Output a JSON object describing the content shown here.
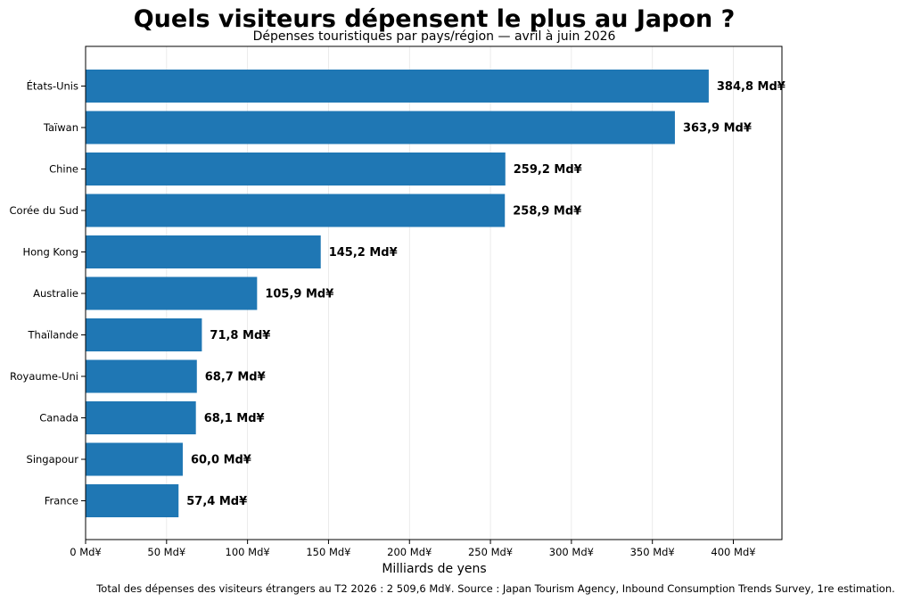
{
  "chart_data": {
    "type": "bar",
    "orientation": "horizontal",
    "title": "Quels visiteurs dépensent le plus au Japon ?",
    "subtitle": "Dépenses touristiques par pays/région — avril à juin 2026",
    "xlabel": "Milliards de yens",
    "ylabel": "",
    "xlim": [
      0,
      430
    ],
    "xticks": [
      0,
      50,
      100,
      150,
      200,
      250,
      300,
      350,
      400
    ],
    "xtick_labels": [
      "0 Md¥",
      "50 Md¥",
      "100 Md¥",
      "150 Md¥",
      "200 Md¥",
      "250 Md¥",
      "300 Md¥",
      "350 Md¥",
      "400 Md¥"
    ],
    "grid": "vertical",
    "bar_color": "#1f77b4",
    "categories": [
      "États-Unis",
      "Taïwan",
      "Chine",
      "Corée du Sud",
      "Hong Kong",
      "Australie",
      "Thaïlande",
      "Royaume-Uni",
      "Canada",
      "Singapour",
      "France"
    ],
    "values": [
      384.8,
      363.9,
      259.2,
      258.9,
      145.2,
      105.9,
      71.8,
      68.7,
      68.1,
      60.0,
      57.4
    ],
    "value_labels": [
      "384,8 Md¥",
      "363,9 Md¥",
      "259,2 Md¥",
      "258,9 Md¥",
      "145,2 Md¥",
      "105,9 Md¥",
      "71,8 Md¥",
      "68,7 Md¥",
      "68,1 Md¥",
      "60,0 Md¥",
      "57,4 Md¥"
    ],
    "footnote": "Total des dépenses des visiteurs étrangers au T2 2026 : 2 509,6 Md¥. Source : Japan Tourism Agency, Inbound Consumption Trends Survey, 1re estimation."
  }
}
